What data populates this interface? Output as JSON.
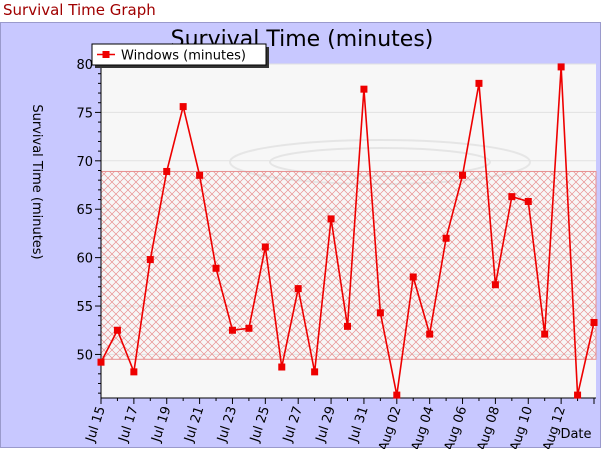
{
  "page": {
    "title": "Survival Time Graph"
  },
  "colors": {
    "frame_background": "#c8c8ff",
    "plot_background": "#f7f7f7",
    "series": "#ee0000",
    "band": "#e89090",
    "title_text": "#a00000"
  },
  "chart_data": {
    "type": "line",
    "title": "Survival Time (minutes)",
    "xlabel": "Date",
    "ylabel": "Survival Time (minutes)",
    "ylim": [
      45.5,
      80
    ],
    "yticks": [
      50,
      55,
      60,
      65,
      70,
      75,
      80
    ],
    "grid": true,
    "legend_position": "top-left",
    "band": [
      49.5,
      68.9
    ],
    "tick_labels": [
      "Jul 15",
      "Jul 17",
      "Jul 19",
      "Jul 21",
      "Jul 23",
      "Jul 25",
      "Jul 27",
      "Jul 29",
      "Jul 31",
      "Aug 02",
      "Aug 04",
      "Aug 06",
      "Aug 08",
      "Aug 10",
      "Aug 12"
    ],
    "x": [
      "Jul 15",
      "Jul 16",
      "Jul 17",
      "Jul 18",
      "Jul 19",
      "Jul 20",
      "Jul 21",
      "Jul 22",
      "Jul 23",
      "Jul 24",
      "Jul 25",
      "Jul 26",
      "Jul 27",
      "Jul 28",
      "Jul 29",
      "Jul 30",
      "Jul 31",
      "Aug 01",
      "Aug 02",
      "Aug 03",
      "Aug 04",
      "Aug 05",
      "Aug 06",
      "Aug 07",
      "Aug 08",
      "Aug 09",
      "Aug 10",
      "Aug 11",
      "Aug 12",
      "Aug 13",
      "Aug 14"
    ],
    "series": [
      {
        "name": "Windows (minutes)",
        "values": [
          49.2,
          52.5,
          48.2,
          59.8,
          68.9,
          75.6,
          68.5,
          58.9,
          52.5,
          52.7,
          61.1,
          48.7,
          56.8,
          48.2,
          64.0,
          52.9,
          77.4,
          54.3,
          45.8,
          58.0,
          52.1,
          62.0,
          68.5,
          78.0,
          57.2,
          66.3,
          65.8,
          52.1,
          79.7,
          45.8,
          53.3
        ]
      }
    ]
  }
}
